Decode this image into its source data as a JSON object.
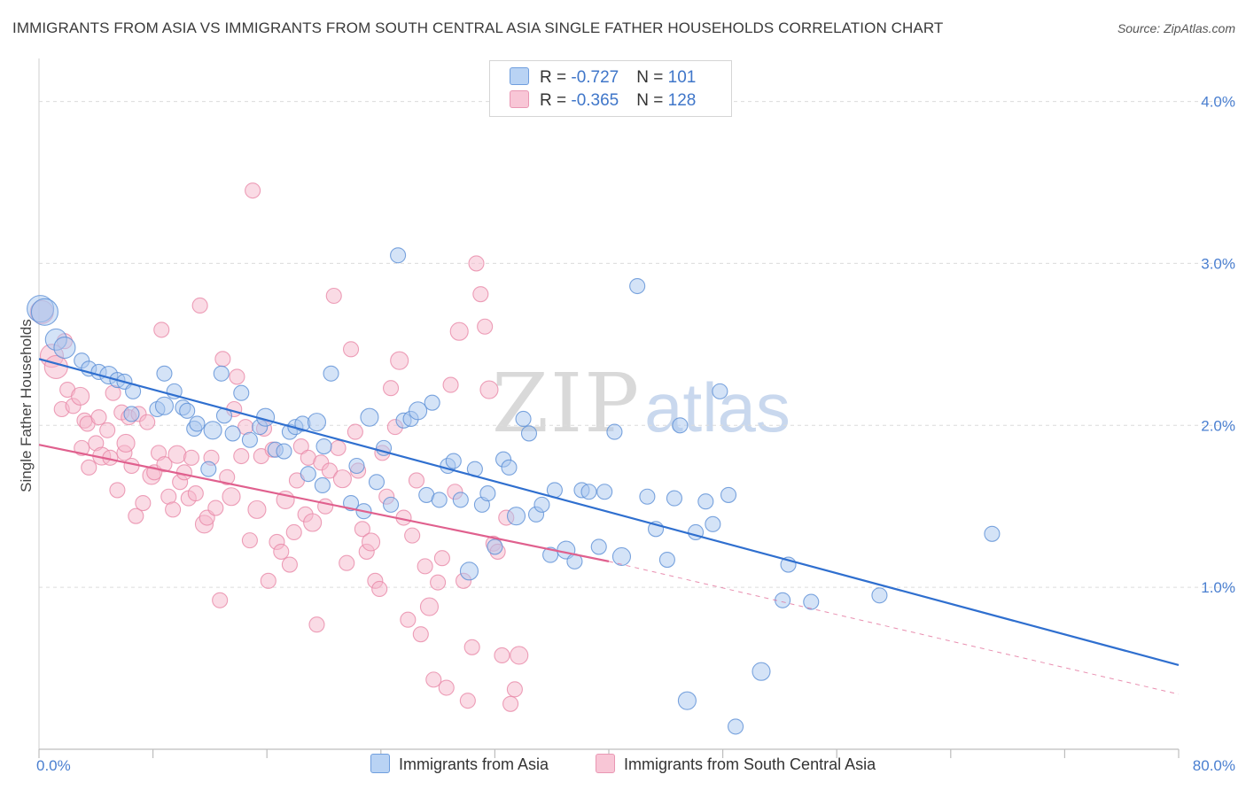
{
  "header": {
    "title": "IMMIGRANTS FROM ASIA VS IMMIGRANTS FROM SOUTH CENTRAL ASIA SINGLE FATHER HOUSEHOLDS CORRELATION CHART",
    "source": "Source: ZipAtlas.com"
  },
  "watermark": {
    "zip": "ZIP",
    "atlas": "atlas"
  },
  "legend": {
    "asia": {
      "r_label": "R = ",
      "r_value": "-0.727",
      "n_label": "N = ",
      "n_value": "101"
    },
    "south_central": {
      "r_label": "R = ",
      "r_value": "-0.365",
      "n_label": "N = ",
      "n_value": "128"
    }
  },
  "colors": {
    "asia_fill": "#a9c8f0",
    "asia_stroke": "#5b8fd6",
    "asia_line": "#2f6fcf",
    "sca_fill": "#f6b8cc",
    "sca_stroke": "#e888a8",
    "sca_line": "#e0608e"
  },
  "chart_data": {
    "type": "scatter",
    "title": "IMMIGRANTS FROM ASIA VS IMMIGRANTS FROM SOUTH CENTRAL ASIA SINGLE FATHER HOUSEHOLDS CORRELATION CHART",
    "xlabel": "",
    "ylabel": "Single Father Households",
    "xlim": [
      0,
      80
    ],
    "ylim": [
      0,
      4.2
    ],
    "x_tick_labels": [
      "0.0%",
      "80.0%"
    ],
    "y_ticks": [
      1,
      2,
      3,
      4
    ],
    "y_tick_labels": [
      "1.0%",
      "2.0%",
      "3.0%",
      "4.0%"
    ],
    "grid": true,
    "legend_placement": "top-center",
    "series": [
      {
        "name": "Immigrants from Asia",
        "trend": {
          "x0": 0,
          "y0": 2.41,
          "x1": 80,
          "y1": 0.52
        },
        "points": [
          [
            0.1,
            2.72
          ],
          [
            0.4,
            2.7
          ],
          [
            1.2,
            2.53
          ],
          [
            1.8,
            2.48
          ],
          [
            3.0,
            2.4
          ],
          [
            3.5,
            2.35
          ],
          [
            4.2,
            2.33
          ],
          [
            4.9,
            2.31
          ],
          [
            5.5,
            2.28
          ],
          [
            6.0,
            2.27
          ],
          [
            6.6,
            2.21
          ],
          [
            6.5,
            2.07
          ],
          [
            8.3,
            2.1
          ],
          [
            8.8,
            2.32
          ],
          [
            8.8,
            2.12
          ],
          [
            9.5,
            2.21
          ],
          [
            10.1,
            2.11
          ],
          [
            10.4,
            2.09
          ],
          [
            10.9,
            1.98
          ],
          [
            11.1,
            2.01
          ],
          [
            11.9,
            1.73
          ],
          [
            12.2,
            1.97
          ],
          [
            12.8,
            2.32
          ],
          [
            13.0,
            2.06
          ],
          [
            13.6,
            1.95
          ],
          [
            14.2,
            2.2
          ],
          [
            14.8,
            1.91
          ],
          [
            15.5,
            1.99
          ],
          [
            15.9,
            2.05
          ],
          [
            16.6,
            1.85
          ],
          [
            17.2,
            1.84
          ],
          [
            17.6,
            1.96
          ],
          [
            18.0,
            1.99
          ],
          [
            18.5,
            2.01
          ],
          [
            18.9,
            1.7
          ],
          [
            19.5,
            2.02
          ],
          [
            19.9,
            1.63
          ],
          [
            20.0,
            1.87
          ],
          [
            20.5,
            2.32
          ],
          [
            21.9,
            1.52
          ],
          [
            22.3,
            1.75
          ],
          [
            22.8,
            1.47
          ],
          [
            23.2,
            2.05
          ],
          [
            23.7,
            1.65
          ],
          [
            24.2,
            1.86
          ],
          [
            24.7,
            1.51
          ],
          [
            25.2,
            3.05
          ],
          [
            25.6,
            2.03
          ],
          [
            26.1,
            2.04
          ],
          [
            26.6,
            2.09
          ],
          [
            27.2,
            1.57
          ],
          [
            27.6,
            2.14
          ],
          [
            28.1,
            1.54
          ],
          [
            28.7,
            1.75
          ],
          [
            29.1,
            1.78
          ],
          [
            29.6,
            1.54
          ],
          [
            30.2,
            1.1
          ],
          [
            30.6,
            1.73
          ],
          [
            31.1,
            1.51
          ],
          [
            31.5,
            1.58
          ],
          [
            32.0,
            1.25
          ],
          [
            32.6,
            1.79
          ],
          [
            33.0,
            1.74
          ],
          [
            33.5,
            1.44
          ],
          [
            34.0,
            2.04
          ],
          [
            34.4,
            1.95
          ],
          [
            34.9,
            1.45
          ],
          [
            35.3,
            1.51
          ],
          [
            35.9,
            1.2
          ],
          [
            36.2,
            1.6
          ],
          [
            37.0,
            1.23
          ],
          [
            37.6,
            1.16
          ],
          [
            38.1,
            1.6
          ],
          [
            38.6,
            1.59
          ],
          [
            39.3,
            1.25
          ],
          [
            39.7,
            1.59
          ],
          [
            40.4,
            1.96
          ],
          [
            40.9,
            1.19
          ],
          [
            42.0,
            2.86
          ],
          [
            42.7,
            1.56
          ],
          [
            43.3,
            1.36
          ],
          [
            44.1,
            1.17
          ],
          [
            44.6,
            1.55
          ],
          [
            45.0,
            2.0
          ],
          [
            45.5,
            0.3
          ],
          [
            46.1,
            1.34
          ],
          [
            46.8,
            1.53
          ],
          [
            47.3,
            1.39
          ],
          [
            47.8,
            2.21
          ],
          [
            48.4,
            1.57
          ],
          [
            48.9,
            0.14
          ],
          [
            50.7,
            0.48
          ],
          [
            52.2,
            0.92
          ],
          [
            52.6,
            1.14
          ],
          [
            54.2,
            0.91
          ],
          [
            59.0,
            0.95
          ],
          [
            66.9,
            1.33
          ]
        ]
      },
      {
        "name": "Immigrants from South Central Asia",
        "trend": {
          "x0": 0,
          "y0": 1.88,
          "x1": 40,
          "y1": 1.16
        },
        "trend_extension": {
          "x0": 40,
          "y0": 1.16,
          "x1": 80,
          "y1": 0.34
        },
        "points": [
          [
            0.2,
            2.7
          ],
          [
            0.9,
            2.43
          ],
          [
            1.2,
            2.36
          ],
          [
            1.8,
            2.52
          ],
          [
            1.6,
            2.1
          ],
          [
            2.0,
            2.22
          ],
          [
            2.4,
            2.12
          ],
          [
            2.9,
            2.18
          ],
          [
            3.0,
            1.86
          ],
          [
            3.2,
            2.03
          ],
          [
            3.4,
            2.01
          ],
          [
            3.5,
            1.74
          ],
          [
            4.0,
            1.89
          ],
          [
            4.2,
            2.05
          ],
          [
            4.4,
            1.81
          ],
          [
            4.8,
            1.97
          ],
          [
            5.0,
            1.8
          ],
          [
            5.2,
            2.2
          ],
          [
            5.5,
            1.6
          ],
          [
            5.8,
            2.08
          ],
          [
            6.0,
            1.83
          ],
          [
            6.1,
            1.89
          ],
          [
            6.3,
            2.05
          ],
          [
            6.5,
            1.75
          ],
          [
            6.8,
            1.44
          ],
          [
            7.0,
            2.07
          ],
          [
            7.3,
            1.52
          ],
          [
            7.6,
            2.02
          ],
          [
            7.9,
            1.69
          ],
          [
            8.1,
            1.71
          ],
          [
            8.4,
            1.83
          ],
          [
            8.6,
            2.59
          ],
          [
            8.8,
            1.76
          ],
          [
            9.1,
            1.56
          ],
          [
            9.4,
            1.48
          ],
          [
            9.7,
            1.82
          ],
          [
            9.9,
            1.65
          ],
          [
            10.2,
            1.71
          ],
          [
            10.5,
            1.55
          ],
          [
            10.7,
            1.8
          ],
          [
            11.0,
            1.58
          ],
          [
            11.3,
            2.74
          ],
          [
            11.6,
            1.39
          ],
          [
            11.8,
            1.43
          ],
          [
            12.1,
            1.8
          ],
          [
            12.4,
            1.49
          ],
          [
            12.7,
            0.92
          ],
          [
            12.9,
            2.41
          ],
          [
            13.2,
            1.68
          ],
          [
            13.5,
            1.56
          ],
          [
            13.7,
            2.1
          ],
          [
            13.9,
            2.3
          ],
          [
            14.2,
            1.81
          ],
          [
            14.5,
            1.99
          ],
          [
            14.8,
            1.29
          ],
          [
            15.0,
            3.45
          ],
          [
            15.3,
            1.48
          ],
          [
            15.6,
            1.81
          ],
          [
            15.8,
            1.98
          ],
          [
            16.1,
            1.04
          ],
          [
            16.4,
            1.85
          ],
          [
            16.7,
            1.28
          ],
          [
            17.0,
            1.22
          ],
          [
            17.3,
            1.54
          ],
          [
            17.6,
            1.14
          ],
          [
            17.9,
            1.34
          ],
          [
            18.1,
            1.66
          ],
          [
            18.4,
            1.87
          ],
          [
            18.7,
            1.45
          ],
          [
            18.9,
            1.8
          ],
          [
            19.2,
            1.4
          ],
          [
            19.5,
            0.77
          ],
          [
            19.8,
            1.77
          ],
          [
            20.1,
            1.5
          ],
          [
            20.4,
            1.72
          ],
          [
            20.7,
            2.8
          ],
          [
            21.0,
            1.86
          ],
          [
            21.3,
            1.67
          ],
          [
            21.6,
            1.15
          ],
          [
            21.9,
            2.47
          ],
          [
            22.2,
            1.96
          ],
          [
            22.4,
            1.72
          ],
          [
            22.7,
            1.36
          ],
          [
            23.0,
            1.22
          ],
          [
            23.3,
            1.28
          ],
          [
            23.6,
            1.04
          ],
          [
            23.9,
            0.99
          ],
          [
            24.1,
            1.83
          ],
          [
            24.4,
            1.56
          ],
          [
            24.7,
            2.23
          ],
          [
            25.0,
            1.99
          ],
          [
            25.3,
            2.4
          ],
          [
            25.6,
            1.43
          ],
          [
            25.9,
            0.8
          ],
          [
            26.2,
            1.32
          ],
          [
            26.5,
            1.66
          ],
          [
            26.8,
            0.71
          ],
          [
            27.1,
            1.13
          ],
          [
            27.4,
            0.88
          ],
          [
            27.7,
            0.43
          ],
          [
            28.0,
            1.03
          ],
          [
            28.3,
            1.18
          ],
          [
            28.6,
            0.38
          ],
          [
            28.9,
            2.25
          ],
          [
            29.2,
            1.59
          ],
          [
            29.5,
            2.58
          ],
          [
            29.8,
            1.04
          ],
          [
            30.1,
            0.3
          ],
          [
            30.4,
            0.63
          ],
          [
            30.7,
            3.0
          ],
          [
            31.0,
            2.81
          ],
          [
            31.3,
            2.61
          ],
          [
            31.6,
            2.22
          ],
          [
            31.9,
            1.27
          ],
          [
            32.2,
            1.22
          ],
          [
            32.5,
            0.58
          ],
          [
            32.8,
            1.43
          ],
          [
            33.1,
            0.28
          ],
          [
            33.4,
            0.37
          ],
          [
            33.7,
            0.58
          ]
        ]
      }
    ]
  }
}
